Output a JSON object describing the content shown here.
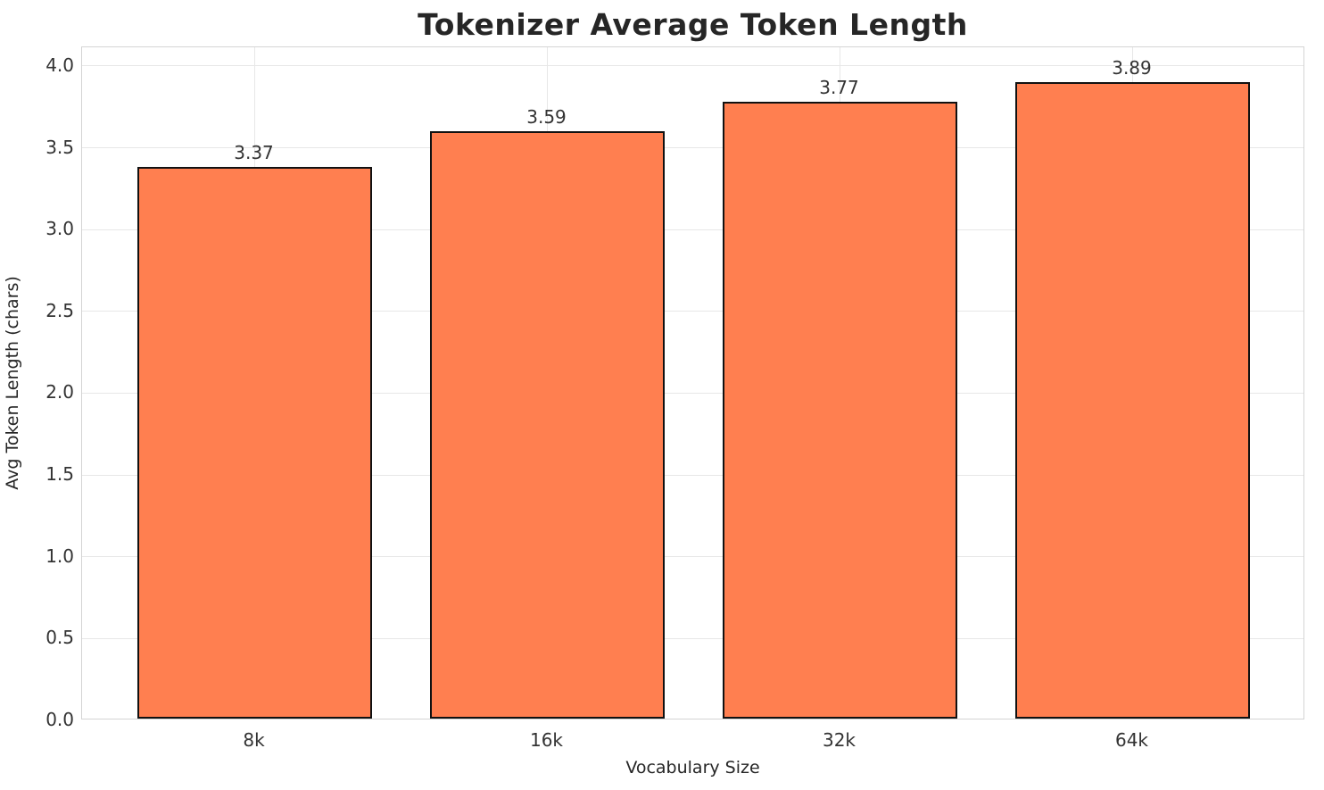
{
  "figure": {
    "title": "Tokenizer Average Token Length",
    "xlabel": "Vocabulary Size",
    "ylabel": "Avg Token Length (chars)"
  },
  "chart_data": {
    "type": "bar",
    "title": "Tokenizer Average Token Length",
    "xlabel": "Vocabulary Size",
    "ylabel": "Avg Token Length (chars)",
    "categories": [
      "8k",
      "16k",
      "32k",
      "64k"
    ],
    "values": [
      3.37,
      3.59,
      3.77,
      3.89
    ],
    "value_labels": [
      "3.37",
      "3.59",
      "3.77",
      "3.89"
    ],
    "yticks": [
      0.0,
      0.5,
      1.0,
      1.5,
      2.0,
      2.5,
      3.0,
      3.5,
      4.0
    ],
    "ytick_labels": [
      "0.0",
      "0.5",
      "1.0",
      "1.5",
      "2.0",
      "2.5",
      "3.0",
      "3.5",
      "4.0"
    ],
    "ylim": [
      0,
      4.114
    ],
    "xlim": [
      -0.59,
      3.59
    ],
    "bar_width_units": 0.8,
    "grid": true,
    "legend": null,
    "bar_color": "#FF7F50",
    "bar_edge_color": "#111111",
    "grid_color": "#e7e7e7",
    "spine_color": "#d4d4d4",
    "text_color": "#262626"
  }
}
